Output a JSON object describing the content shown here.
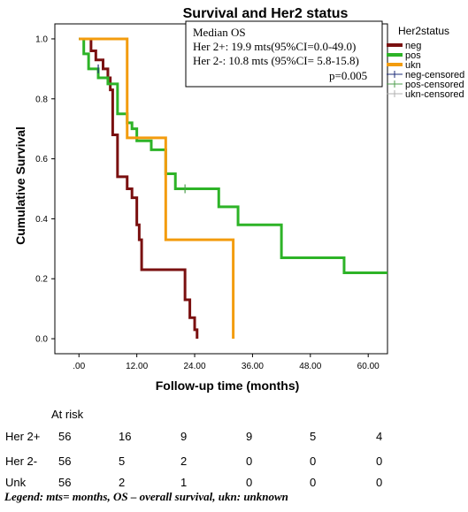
{
  "chart_data": {
    "type": "line",
    "title": "Survival and Her2 status",
    "xlabel": "Follow-up time (months)",
    "ylabel": "Cumulative  Survival",
    "xlim": [
      -5,
      64
    ],
    "ylim": [
      -0.05,
      1.05
    ],
    "x_ticks": [
      0,
      12,
      24,
      36,
      48,
      60
    ],
    "x_tick_labels": [
      ".00",
      "12.00",
      "24.00",
      "36.00",
      "48.00",
      "60.00"
    ],
    "y_ticks": [
      0,
      0.2,
      0.4,
      0.6,
      0.8,
      1.0
    ],
    "y_tick_labels": [
      "0.0",
      "0.2",
      "0.4",
      "0.6",
      "0.8",
      "1.0"
    ],
    "grid": false,
    "legend_placement": "right",
    "legend_title": "Her2status",
    "series": [
      {
        "name": "neg",
        "color": "#7a1010",
        "x": [
          0,
          2.5,
          3.5,
          5,
          6,
          6.5,
          7,
          8,
          10,
          11,
          12,
          12.5,
          13,
          22,
          23,
          24,
          24.5
        ],
        "y": [
          1.0,
          0.96,
          0.93,
          0.9,
          0.87,
          0.83,
          0.68,
          0.54,
          0.5,
          0.47,
          0.38,
          0.33,
          0.23,
          0.13,
          0.07,
          0.03,
          0.0
        ]
      },
      {
        "name": "pos",
        "color": "#2db327",
        "x": [
          0,
          1,
          2,
          4,
          6,
          8,
          10,
          11,
          12,
          15,
          18,
          20,
          29,
          33,
          42,
          55,
          64
        ],
        "y": [
          1.0,
          0.95,
          0.9,
          0.87,
          0.85,
          0.75,
          0.72,
          0.7,
          0.66,
          0.63,
          0.55,
          0.5,
          0.44,
          0.38,
          0.27,
          0.22,
          0.22
        ]
      },
      {
        "name": "ukn",
        "color": "#f39c0e",
        "x": [
          0,
          8.5,
          10,
          18,
          31.5,
          32
        ],
        "y": [
          1.0,
          1.0,
          0.67,
          0.33,
          0.33,
          0.0
        ]
      }
    ],
    "legend_entries": [
      {
        "label": "neg",
        "color": "#7a1010",
        "style": "line"
      },
      {
        "label": "pos",
        "color": "#2db327",
        "style": "line"
      },
      {
        "label": "ukn",
        "color": "#f39c0e",
        "style": "line"
      },
      {
        "label": "neg-censored",
        "color": "#1e2c7a",
        "style": "cross"
      },
      {
        "label": "pos-censored",
        "color": "#4f9e4f",
        "style": "cross"
      },
      {
        "label": "ukn-censored",
        "color": "#b0b0b0",
        "style": "cross"
      }
    ],
    "censored_marks": [
      {
        "series": "neg",
        "x": 4.0,
        "y": 0.9
      },
      {
        "series": "pos",
        "x": 22.0,
        "y": 0.5
      }
    ],
    "annotation": {
      "lines": [
        "Median OS",
        "Her 2+: 19.9 mts(95%CI=0.0-49.0)",
        "Her 2-: 10.8 mts (95%CI= 5.8-15.8)",
        "p=0.005"
      ]
    }
  },
  "risk_table": {
    "header": "At risk",
    "rows": [
      {
        "label": "Her 2+",
        "values": [
          "56",
          "16",
          "9",
          "9",
          "5",
          "4"
        ]
      },
      {
        "label": "Her 2-",
        "values": [
          "56",
          "5",
          "2",
          "0",
          "0",
          "0"
        ]
      },
      {
        "label": "Unk",
        "values": [
          "56",
          "2",
          "1",
          "0",
          "0",
          "0"
        ]
      }
    ]
  },
  "legend_note": "Legend: mts= months, OS – overall survival, ukn: unknown"
}
